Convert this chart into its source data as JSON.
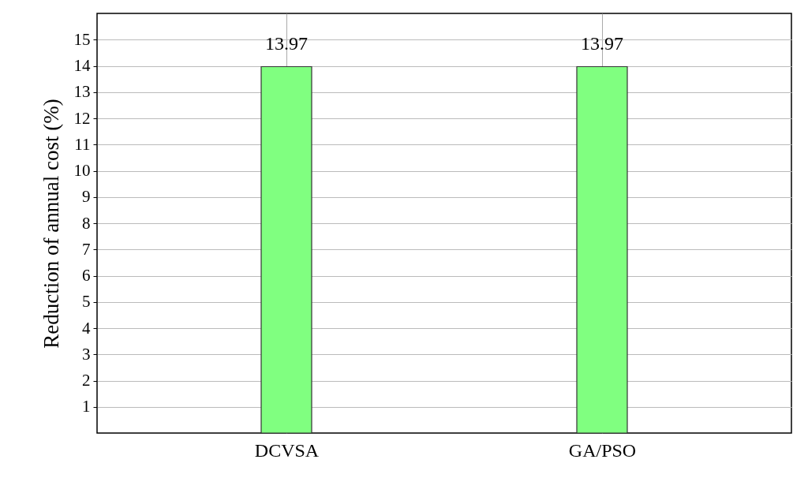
{
  "chart_data": {
    "type": "bar",
    "ylabel": "Reduction of annual cost (%)",
    "categories": [
      "DCVSA",
      "GA/PSO"
    ],
    "values": [
      13.97,
      13.97
    ],
    "color": "#80ff80",
    "ylim": [
      0,
      16
    ],
    "yticks": [
      1,
      2,
      3,
      4,
      5,
      6,
      7,
      8,
      9,
      10,
      11,
      12,
      13,
      14,
      15
    ],
    "grid": true,
    "data_labels": true
  }
}
